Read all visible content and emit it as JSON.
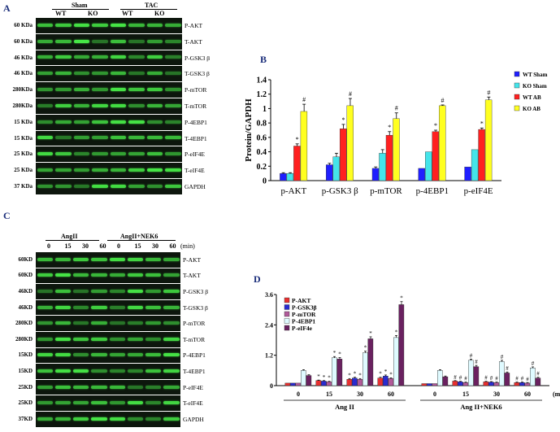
{
  "panels": {
    "A": "A",
    "B": "B",
    "C": "C",
    "D": "D"
  },
  "blotA": {
    "groups": [
      "Sham",
      "TAC"
    ],
    "subgroups": [
      "WT",
      "KO",
      "WT",
      "KO"
    ],
    "rows": [
      {
        "kda": "60 KDa",
        "label": "P-AKT"
      },
      {
        "kda": "60 KDa",
        "label": "T-AKT"
      },
      {
        "kda": "46 KDa",
        "label": "P-GSK3 β"
      },
      {
        "kda": "46 KDa",
        "label": "T-GSK3 β"
      },
      {
        "kda": "280KDa",
        "label": "P-mTOR"
      },
      {
        "kda": "280KDa",
        "label": "T-mTOR"
      },
      {
        "kda": "15 KDa",
        "label": "P-4EBP1"
      },
      {
        "kda": "15 KDa",
        "label": "T-4EBP1"
      },
      {
        "kda": "25 KDa",
        "label": "P-eIF4E"
      },
      {
        "kda": "25 KDa",
        "label": "T-eIF4E"
      },
      {
        "kda": "37 KDa",
        "label": "GAPDH"
      }
    ]
  },
  "blotC": {
    "groups": [
      "AngII",
      "AngII+NEK6"
    ],
    "times": [
      "0",
      "15",
      "30",
      "60",
      "0",
      "15",
      "30",
      "60"
    ],
    "unit": "(min)",
    "rows": [
      {
        "kda": "60KD",
        "label": "P-AKT"
      },
      {
        "kda": "60KD",
        "label": "T-AKT"
      },
      {
        "kda": "46KD",
        "label": "P-GSK3 β"
      },
      {
        "kda": "46KD",
        "label": "T-GSK3 β"
      },
      {
        "kda": "280KD",
        "label": "P-mTOR"
      },
      {
        "kda": "280KD",
        "label": "T-mTOR"
      },
      {
        "kda": "15KD",
        "label": "P-4EBP1"
      },
      {
        "kda": "15KD",
        "label": "T-4EBP1"
      },
      {
        "kda": "25KD",
        "label": "P-eIF4E"
      },
      {
        "kda": "25KD",
        "label": "T-eIF4E"
      },
      {
        "kda": "37KD",
        "label": "GAPDH"
      }
    ]
  },
  "chart_data": [
    {
      "type": "bar",
      "panel": "B",
      "title": "",
      "xlabel": "",
      "ylabel": "Protein/GAPDH",
      "ylim": [
        0,
        1.4
      ],
      "yticks": [
        "0",
        "0.2",
        "0.4",
        "0.6",
        "0.8",
        "1",
        "1.2",
        "1.4"
      ],
      "categories": [
        "p-AKT",
        "p-GSK3 β",
        "p-mTOR",
        "p-4EBP1",
        "p-eIF4E"
      ],
      "series": [
        {
          "name": "WT Sham",
          "color": "#1f1fff",
          "values": [
            0.1,
            0.22,
            0.17,
            0.17,
            0.19
          ],
          "errors": [
            0.01,
            0.02,
            0.02,
            0.0,
            0.0
          ],
          "marks": [
            "",
            "",
            "",
            "",
            ""
          ]
        },
        {
          "name": "KO Sham",
          "color": "#44e4ea",
          "values": [
            0.1,
            0.33,
            0.38,
            0.4,
            0.43
          ],
          "errors": [
            0.01,
            0.05,
            0.05,
            0.0,
            0.0
          ],
          "marks": [
            "",
            "",
            "",
            "",
            ""
          ]
        },
        {
          "name": "WT AB",
          "color": "#ff2020",
          "values": [
            0.48,
            0.72,
            0.63,
            0.68,
            0.71
          ],
          "errors": [
            0.03,
            0.06,
            0.05,
            0.02,
            0.02
          ],
          "marks": [
            "*",
            "*",
            "*",
            "*",
            "*"
          ]
        },
        {
          "name": "KO AB",
          "color": "#ffff20",
          "values": [
            0.96,
            1.04,
            0.86,
            1.04,
            1.12
          ],
          "errors": [
            0.1,
            0.1,
            0.08,
            0.01,
            0.04
          ],
          "marks": [
            "#",
            "#",
            "#",
            "#",
            "#"
          ]
        }
      ]
    },
    {
      "type": "bar",
      "panel": "D",
      "title": "",
      "xlabel": "(min)",
      "ylabel": "Protein/GAPDH",
      "ylim": [
        0,
        3.6
      ],
      "yticks": [
        "0",
        "1.2",
        "2.4",
        "3.6"
      ],
      "categories": [
        "0",
        "15",
        "30",
        "60",
        "0",
        "15",
        "30",
        "60"
      ],
      "groups": [
        {
          "label": "Ang II",
          "span": [
            0,
            3
          ]
        },
        {
          "label": "Ang II+NEK6",
          "span": [
            4,
            7
          ]
        }
      ],
      "series": [
        {
          "name": "P-AKT",
          "color": "#e83030",
          "values": [
            0.1,
            0.2,
            0.25,
            0.3,
            0.08,
            0.18,
            0.15,
            0.12
          ],
          "errors": [
            0,
            0.02,
            0.03,
            0.03,
            0,
            0.02,
            0.02,
            0.02
          ],
          "marks": [
            "",
            "*",
            "*",
            "*",
            "",
            "#",
            "#",
            "#"
          ]
        },
        {
          "name": "P-GSK3β",
          "color": "#2b2bd0",
          "values": [
            0.1,
            0.18,
            0.3,
            0.38,
            0.08,
            0.15,
            0.14,
            0.12
          ],
          "errors": [
            0,
            0.02,
            0.03,
            0.04,
            0,
            0.02,
            0.02,
            0.02
          ],
          "marks": [
            "",
            "*",
            "*",
            "*",
            "",
            "#",
            "#",
            "#"
          ]
        },
        {
          "name": "P-mTOR",
          "color": "#b15a9a",
          "values": [
            0.1,
            0.15,
            0.25,
            0.28,
            0.08,
            0.12,
            0.12,
            0.1
          ],
          "errors": [
            0,
            0.02,
            0.03,
            0.03,
            0,
            0.02,
            0.02,
            0.02
          ],
          "marks": [
            "",
            "*",
            "*",
            "*",
            "",
            "#",
            "#",
            "#"
          ]
        },
        {
          "name": "P-4EBP1",
          "color": "#dffaff",
          "values": [
            0.6,
            1.1,
            1.3,
            1.9,
            0.6,
            1.0,
            0.95,
            0.7
          ],
          "errors": [
            0.03,
            0.05,
            0.06,
            0.08,
            0.03,
            0.05,
            0.05,
            0.04
          ],
          "marks": [
            "",
            "*",
            "*",
            "*",
            "",
            "#",
            "#",
            "#"
          ]
        },
        {
          "name": "P-eIF4e",
          "color": "#6a2160",
          "values": [
            0.4,
            1.05,
            1.85,
            3.2,
            0.35,
            0.75,
            0.5,
            0.3
          ],
          "errors": [
            0.03,
            0.06,
            0.08,
            0.12,
            0.03,
            0.05,
            0.04,
            0.03
          ],
          "marks": [
            "",
            "*",
            "*",
            "*",
            "",
            "#",
            "#",
            "#"
          ]
        }
      ]
    }
  ]
}
